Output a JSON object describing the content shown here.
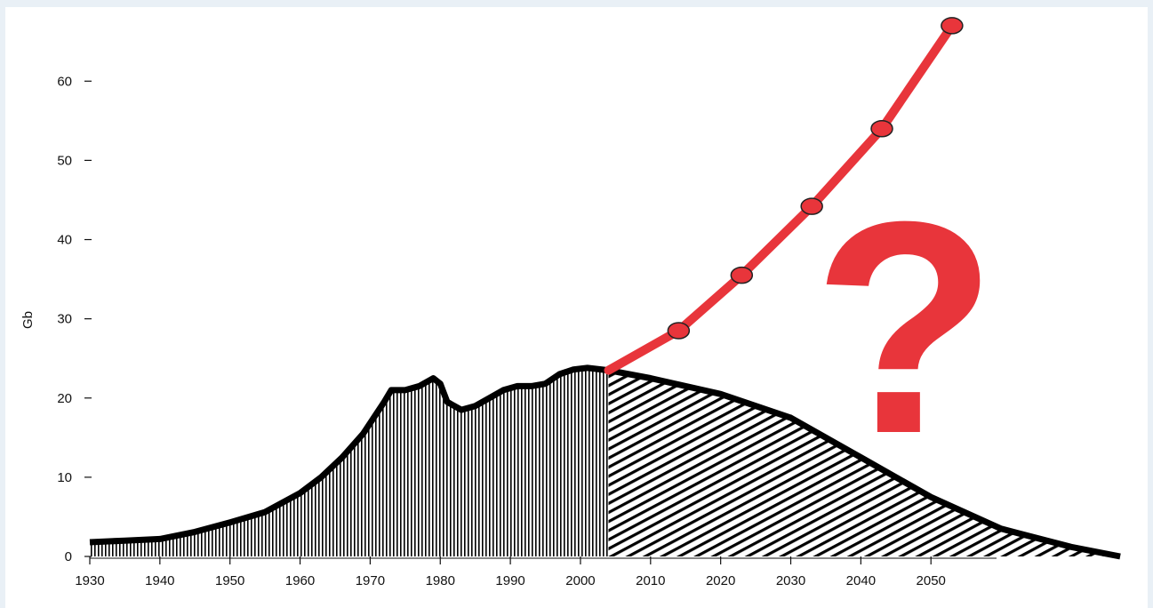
{
  "chart_data": {
    "type": "area",
    "title": "",
    "xlabel": "",
    "ylabel": "Gb",
    "xlim": [
      1930,
      2078
    ],
    "ylim": [
      0,
      68
    ],
    "x_ticks": [
      1930,
      1940,
      1950,
      1960,
      1970,
      1980,
      1990,
      2000,
      2010,
      2020,
      2030,
      2040,
      2050
    ],
    "y_ticks": [
      0,
      10,
      20,
      30,
      40,
      50,
      60
    ],
    "grid": false,
    "legend": "none",
    "annotation": "?",
    "colors": {
      "production": "#000000",
      "projection": "#e8353b"
    },
    "series": [
      {
        "x": [
          1930,
          1935,
          1940,
          1945,
          1950,
          1955,
          1960,
          1963,
          1966,
          1969,
          1972,
          1973,
          1975,
          1977,
          1979,
          1980,
          1981,
          1983,
          1985,
          1987,
          1989,
          1991,
          1993,
          1995,
          1997,
          1999,
          2001,
          2004
        ],
        "y": [
          1.8,
          2.0,
          2.2,
          3.1,
          4.3,
          5.6,
          8.0,
          10.0,
          12.5,
          15.5,
          19.5,
          21.0,
          21.0,
          21.5,
          22.5,
          21.8,
          19.5,
          18.5,
          19.0,
          20.0,
          21.0,
          21.5,
          21.5,
          21.8,
          23.0,
          23.6,
          23.8,
          23.5
        ]
      },
      {
        "x": [
          2004,
          2010,
          2020,
          2030,
          2040,
          2050,
          2060,
          2070,
          2077
        ],
        "y": [
          23.5,
          22.5,
          20.5,
          17.5,
          12.5,
          7.5,
          3.5,
          1.2,
          0
        ]
      },
      {
        "x": [
          2004,
          2014,
          2023,
          2033,
          2043,
          2053
        ],
        "y": [
          23.5,
          28.5,
          35.5,
          44.2,
          54.0,
          67.0
        ]
      }
    ]
  }
}
